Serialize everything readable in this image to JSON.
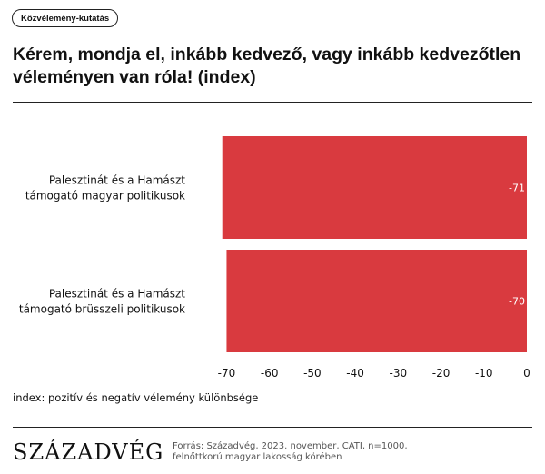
{
  "tag": "Közvélemény-kutatás",
  "title": "Kérem, mondja el, inkább kedvező, vagy inkább kedvezőtlen véleményen van róla! (index)",
  "note": "index: pozitív és negatív vélemény különbsége",
  "logo": "SZÁZADVÉG",
  "source_line1": "Forrás: Századvég, 2023. november, CATI, n=1000,",
  "source_line2": "felnőttkorú magyar lakosság körében",
  "chart_data": {
    "type": "bar",
    "orientation": "horizontal",
    "categories": [
      [
        "Palesztinát és a Hamászt",
        "támogató magyar politikusok"
      ],
      [
        "Palesztinát és a Hamászt",
        "támogató brüsszeli politikusok"
      ]
    ],
    "values": [
      -71,
      -70
    ],
    "value_labels": [
      "-71",
      "-70"
    ],
    "xlim": [
      -72,
      0
    ],
    "xticks": [
      -70,
      -60,
      -50,
      -40,
      -30,
      -20,
      -10,
      0
    ],
    "bar_color": "#d93a3f",
    "grid": false
  }
}
